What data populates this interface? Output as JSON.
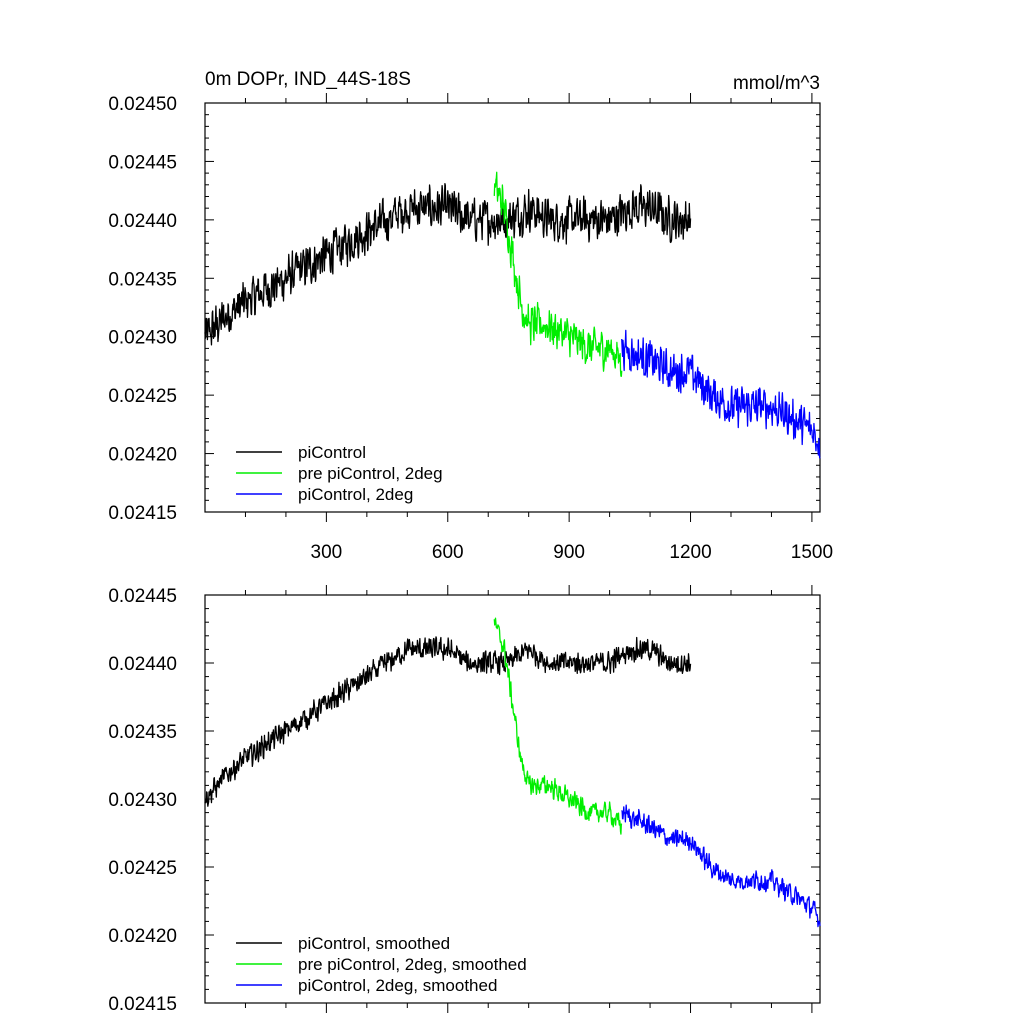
{
  "chart_data": [
    {
      "type": "line",
      "title": "0m DOPr, IND_44S-18S",
      "units": "mmol/m^3",
      "xlim": [
        0,
        1520
      ],
      "ylim": [
        0.02415,
        0.0245
      ],
      "xticks": [
        300,
        600,
        900,
        1200,
        1500
      ],
      "xtick_labels": [
        "300",
        "600",
        "900",
        "1200",
        "1500"
      ],
      "yticks": [
        0.02415,
        0.0242,
        0.02425,
        0.0243,
        0.02435,
        0.0244,
        0.02445,
        0.0245
      ],
      "ytick_labels": [
        "0.02415",
        "0.02420",
        "0.02425",
        "0.02430",
        "0.02435",
        "0.02440",
        "0.02445",
        "0.02450"
      ],
      "legend_position": "bottom-left",
      "series": [
        {
          "name": "piControl",
          "color": "#000000",
          "x": [
            0,
            30,
            60,
            100,
            150,
            200,
            250,
            300,
            350,
            400,
            450,
            500,
            550,
            600,
            650,
            700,
            750,
            800,
            850,
            900,
            950,
            1000,
            1050,
            1100,
            1150,
            1200
          ],
          "values": [
            0.0243,
            0.02431,
            0.02432,
            0.02433,
            0.02434,
            0.02435,
            0.02436,
            0.02437,
            0.02438,
            0.02439,
            0.0244,
            0.02441,
            0.02441,
            0.02441,
            0.0244,
            0.0244,
            0.0244,
            0.02441,
            0.0244,
            0.0244,
            0.0244,
            0.0244,
            0.02441,
            0.02441,
            0.0244,
            0.0244
          ],
          "noise": 2.2e-05
        },
        {
          "name": "pre piControl, 2deg",
          "color": "#00ee00",
          "x": [
            715,
            740,
            760,
            780,
            800,
            850,
            900,
            950,
            1000,
            1030
          ],
          "values": [
            0.02443,
            0.02441,
            0.02437,
            0.02433,
            0.02431,
            0.02431,
            0.0243,
            0.02429,
            0.02429,
            0.02428
          ],
          "noise": 2e-05
        },
        {
          "name": "piControl, 2deg",
          "color": "#0000ff",
          "x": [
            1030,
            1100,
            1150,
            1200,
            1250,
            1300,
            1350,
            1400,
            1450,
            1500,
            1520
          ],
          "values": [
            0.02429,
            0.02428,
            0.02427,
            0.02427,
            0.02425,
            0.02424,
            0.02424,
            0.02424,
            0.02423,
            0.02422,
            0.02421
          ],
          "noise": 2e-05
        }
      ]
    },
    {
      "type": "line",
      "title": "",
      "units": "",
      "xlim": [
        0,
        1520
      ],
      "ylim": [
        0.02415,
        0.02445
      ],
      "xticks": [
        300,
        600,
        900,
        1200,
        1500
      ],
      "xtick_labels": [],
      "yticks": [
        0.02415,
        0.0242,
        0.02425,
        0.0243,
        0.02435,
        0.0244,
        0.02445
      ],
      "ytick_labels": [
        "0.02415",
        "0.02420",
        "0.02425",
        "0.02430",
        "0.02435",
        "0.02440",
        "0.02445"
      ],
      "legend_position": "bottom-left",
      "series": [
        {
          "name": "piControl, smoothed",
          "color": "#000000",
          "x": [
            0,
            30,
            60,
            100,
            150,
            200,
            250,
            300,
            350,
            400,
            450,
            500,
            550,
            600,
            650,
            700,
            750,
            800,
            850,
            900,
            950,
            1000,
            1050,
            1100,
            1150,
            1200
          ],
          "values": [
            0.0243,
            0.02431,
            0.02432,
            0.02433,
            0.02434,
            0.02435,
            0.02436,
            0.02437,
            0.02438,
            0.02439,
            0.0244,
            0.02441,
            0.02441,
            0.02441,
            0.0244,
            0.0244,
            0.0244,
            0.02441,
            0.0244,
            0.0244,
            0.0244,
            0.0244,
            0.02441,
            0.02441,
            0.0244,
            0.0244
          ],
          "noise": 1e-05
        },
        {
          "name": "pre piControl, 2deg, smoothed",
          "color": "#00ee00",
          "x": [
            715,
            740,
            760,
            780,
            800,
            850,
            900,
            950,
            1000,
            1030
          ],
          "values": [
            0.02443,
            0.02441,
            0.02437,
            0.02433,
            0.02431,
            0.02431,
            0.0243,
            0.02429,
            0.02429,
            0.02428
          ],
          "noise": 9e-06
        },
        {
          "name": "piControl, 2deg, smoothed",
          "color": "#0000ff",
          "x": [
            1030,
            1100,
            1150,
            1200,
            1250,
            1300,
            1350,
            1400,
            1450,
            1500,
            1520
          ],
          "values": [
            0.02429,
            0.02428,
            0.02427,
            0.02427,
            0.02425,
            0.02424,
            0.02424,
            0.02424,
            0.02423,
            0.02422,
            0.02421
          ],
          "noise": 9e-06
        }
      ]
    }
  ]
}
